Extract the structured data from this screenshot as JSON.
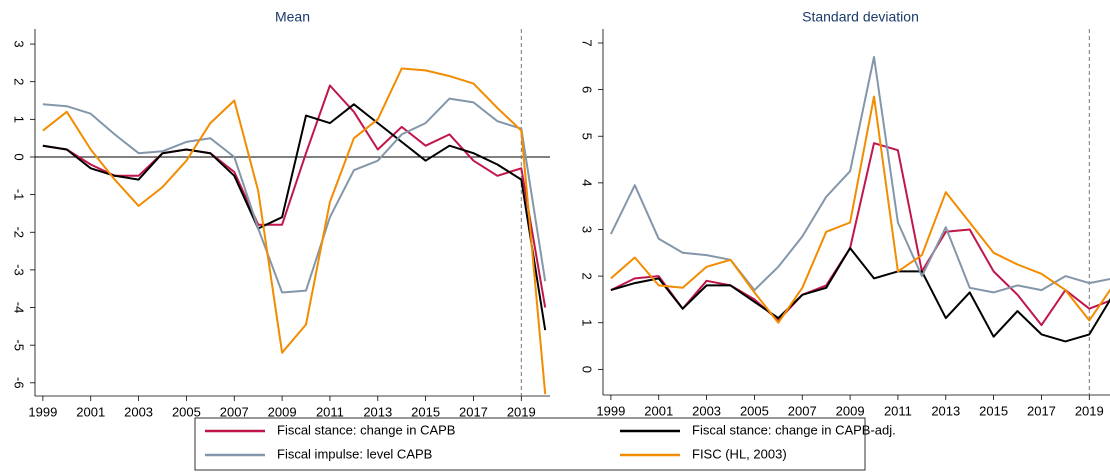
{
  "chart_data": [
    {
      "type": "line",
      "title": "Mean",
      "x": [
        1999,
        2000,
        2001,
        2002,
        2003,
        2004,
        2005,
        2006,
        2007,
        2008,
        2009,
        2010,
        2011,
        2012,
        2013,
        2014,
        2015,
        2016,
        2017,
        2018,
        2019,
        2020
      ],
      "xlim": [
        1998.67,
        2020.2
      ],
      "xticks": [
        1999,
        2001,
        2003,
        2005,
        2007,
        2009,
        2011,
        2013,
        2015,
        2017,
        2019
      ],
      "ylim": [
        -6.35,
        3.4
      ],
      "yticks": [
        -6,
        -5,
        -4,
        -3,
        -2,
        -1,
        0,
        1,
        2,
        3
      ],
      "zero_line": 0,
      "vline": 2019,
      "series": [
        {
          "name": "Fiscal stance: change in CAPB",
          "color": "#c0174a",
          "values": [
            0.3,
            0.2,
            -0.2,
            -0.5,
            -0.5,
            0.1,
            0.2,
            0.1,
            -0.4,
            -1.8,
            -1.8,
            0.1,
            1.9,
            1.2,
            0.2,
            0.8,
            0.3,
            0.6,
            -0.1,
            -0.5,
            -0.3,
            -4.0
          ]
        },
        {
          "name": "Fiscal stance: change in CAPB-adj.",
          "color": "#000000",
          "values": [
            0.3,
            0.2,
            -0.3,
            -0.5,
            -0.6,
            0.1,
            0.2,
            0.1,
            -0.5,
            -1.9,
            -1.6,
            1.1,
            0.9,
            1.4,
            0.9,
            0.4,
            -0.1,
            0.3,
            0.1,
            -0.2,
            -0.6,
            -4.6
          ]
        },
        {
          "name": "Fiscal impulse: level CAPB",
          "color": "#8497aa",
          "values": [
            1.4,
            1.35,
            1.15,
            0.6,
            0.1,
            0.15,
            0.4,
            0.5,
            0.0,
            -1.9,
            -3.6,
            -3.55,
            -1.6,
            -0.35,
            -0.1,
            0.6,
            0.9,
            1.55,
            1.45,
            0.95,
            0.75,
            -3.3
          ]
        },
        {
          "name": "FISC (HL, 2003)",
          "color": "#f28c00",
          "values": [
            0.7,
            1.2,
            0.2,
            -0.6,
            -1.3,
            -0.8,
            -0.1,
            0.9,
            1.5,
            -0.9,
            -5.2,
            -4.45,
            -1.2,
            0.5,
            1.0,
            2.35,
            2.3,
            2.15,
            1.95,
            1.3,
            0.7,
            -6.3
          ]
        }
      ]
    },
    {
      "type": "line",
      "title": "Standard deviation",
      "x": [
        1999,
        2000,
        2001,
        2002,
        2003,
        2004,
        2005,
        2006,
        2007,
        2008,
        2009,
        2010,
        2011,
        2012,
        2013,
        2014,
        2015,
        2016,
        2017,
        2018,
        2019,
        2020
      ],
      "xlim": [
        1998.67,
        2020.2
      ],
      "xticks": [
        1999,
        2001,
        2003,
        2005,
        2007,
        2009,
        2011,
        2013,
        2015,
        2017,
        2019
      ],
      "ylim": [
        -0.55,
        7.3
      ],
      "yticks": [
        0,
        1,
        2,
        3,
        4,
        5,
        6,
        7
      ],
      "vline": 2019,
      "series": [
        {
          "color": "#c0174a",
          "values": [
            1.7,
            1.95,
            2.0,
            1.3,
            1.9,
            1.8,
            1.5,
            1.05,
            1.6,
            1.8,
            2.6,
            4.85,
            4.7,
            2.1,
            2.95,
            3.0,
            2.1,
            1.6,
            0.95,
            1.7,
            1.3,
            1.5
          ]
        },
        {
          "color": "#000000",
          "values": [
            1.7,
            1.85,
            1.95,
            1.3,
            1.8,
            1.8,
            1.45,
            1.1,
            1.6,
            1.75,
            2.6,
            1.95,
            2.1,
            2.1,
            1.1,
            1.65,
            0.7,
            1.25,
            0.75,
            0.6,
            0.75,
            1.6
          ]
        },
        {
          "color": "#8497aa",
          "values": [
            2.9,
            3.95,
            2.8,
            2.5,
            2.45,
            2.35,
            1.7,
            2.2,
            2.85,
            3.7,
            4.25,
            6.7,
            3.15,
            2.0,
            3.05,
            1.75,
            1.65,
            1.8,
            1.7,
            2.0,
            1.85,
            1.95
          ]
        },
        {
          "color": "#f28c00",
          "values": [
            1.95,
            2.4,
            1.8,
            1.75,
            2.2,
            2.35,
            1.65,
            1.0,
            1.75,
            2.95,
            3.15,
            5.85,
            2.1,
            2.45,
            3.8,
            3.15,
            2.5,
            2.25,
            2.05,
            1.7,
            1.05,
            1.8
          ]
        }
      ]
    }
  ]
}
